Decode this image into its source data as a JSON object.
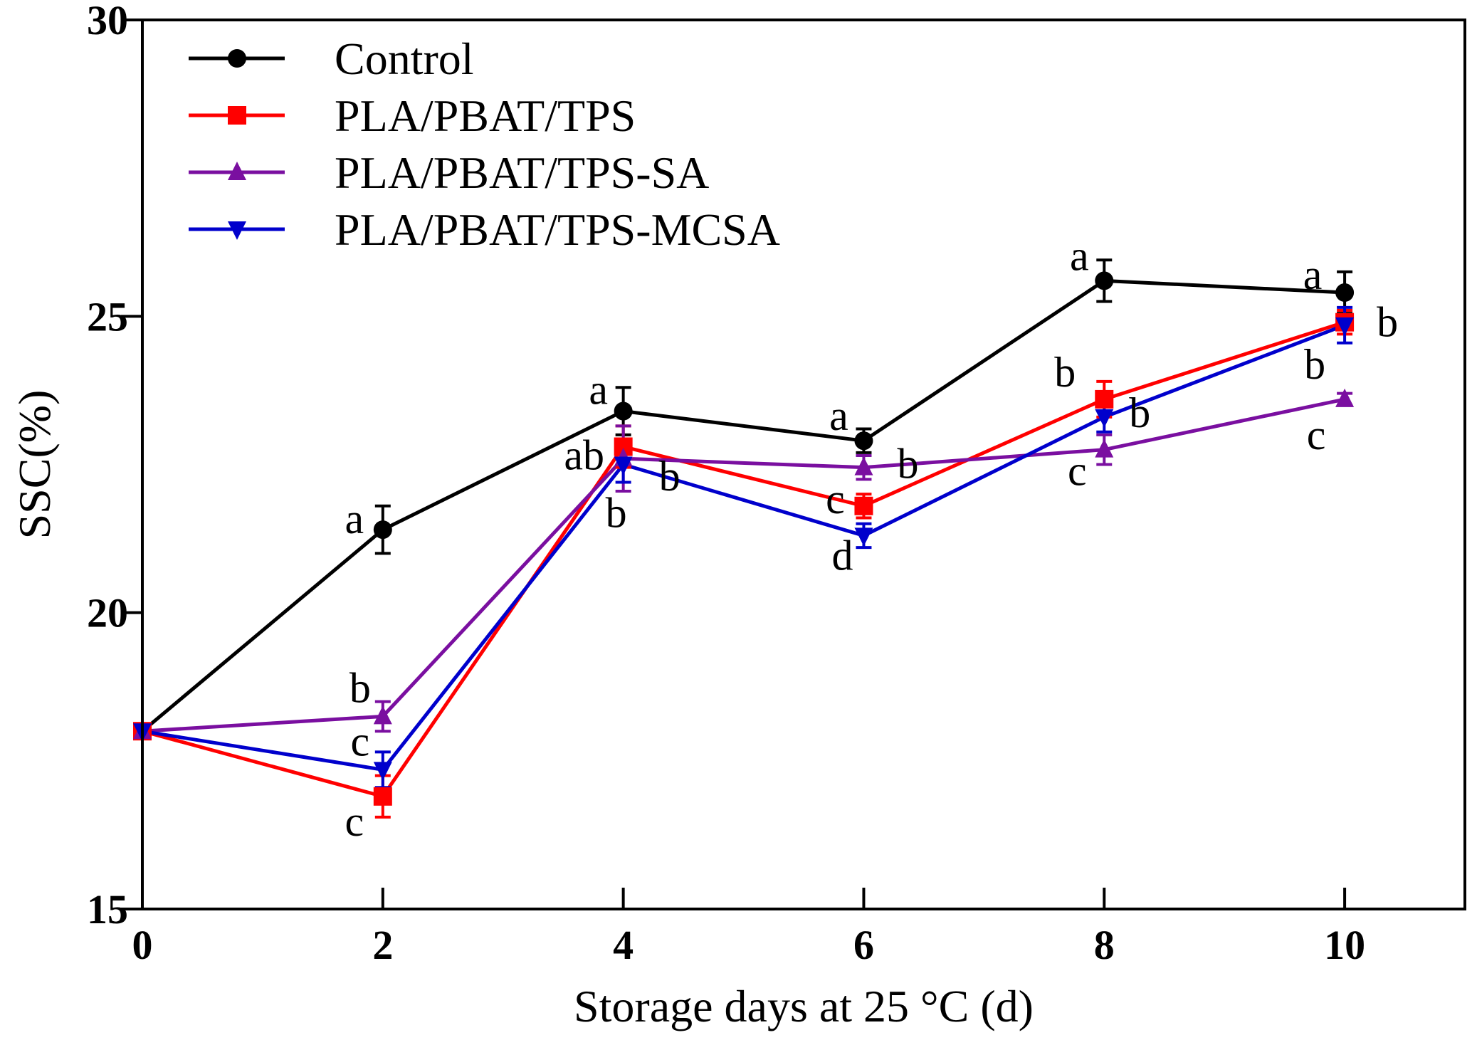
{
  "chart_data": {
    "type": "line",
    "xlabel": "Storage days at 25 °C (d)",
    "ylabel": "SSC(%)",
    "xlim": [
      0,
      11
    ],
    "ylim": [
      15,
      30
    ],
    "x_ticks": [
      "0",
      "2",
      "4",
      "6",
      "8",
      "10"
    ],
    "y_ticks": [
      "15",
      "20",
      "25",
      "30"
    ],
    "legend_position": "top-left",
    "x": [
      0,
      2,
      4,
      6,
      8,
      10
    ],
    "series": [
      {
        "name": "Control",
        "color": "#000000",
        "marker": "circle",
        "values": [
          18.0,
          21.4,
          23.4,
          22.9,
          25.6,
          25.4
        ],
        "errors": [
          0.1,
          0.4,
          0.4,
          0.2,
          0.35,
          0.35
        ]
      },
      {
        "name": "PLA/PBAT/TPS",
        "color": "#ff0000",
        "marker": "square",
        "values": [
          18.0,
          16.9,
          22.8,
          21.8,
          23.6,
          24.9
        ],
        "errors": [
          0.1,
          0.35,
          0.35,
          0.2,
          0.3,
          0.2
        ]
      },
      {
        "name": "PLA/PBAT/TPS-SA",
        "color": "#7a0fa0",
        "marker": "triangle-up",
        "values": [
          18.0,
          18.25,
          22.6,
          22.45,
          22.75,
          23.6
        ],
        "errors": [
          0.1,
          0.25,
          0.55,
          0.2,
          0.25,
          0.1
        ]
      },
      {
        "name": "PLA/PBAT/TPS-MCSA",
        "color": "#0000cc",
        "marker": "triangle-down",
        "values": [
          18.0,
          17.35,
          22.5,
          21.3,
          23.3,
          24.85
        ],
        "errors": [
          0.1,
          0.3,
          0.3,
          0.2,
          0.25,
          0.3
        ]
      }
    ],
    "annotations": [
      {
        "x": 2,
        "series": "Control",
        "text": "a"
      },
      {
        "x": 4,
        "series": "Control",
        "text": "a"
      },
      {
        "x": 6,
        "series": "Control",
        "text": "a"
      },
      {
        "x": 8,
        "series": "Control",
        "text": "a"
      },
      {
        "x": 10,
        "series": "Control",
        "text": "a"
      },
      {
        "x": 2,
        "series": "PLA/PBAT/TPS-SA",
        "text": "b"
      },
      {
        "x": 2,
        "series": "PLA/PBAT/TPS-MCSA",
        "text": "c"
      },
      {
        "x": 2,
        "series": "PLA/PBAT/TPS",
        "text": "c"
      },
      {
        "x": 4,
        "series": "PLA/PBAT/TPS",
        "text": "ab"
      },
      {
        "x": 4,
        "series": "PLA/PBAT/TPS-SA",
        "text": "b"
      },
      {
        "x": 4,
        "series": "PLA/PBAT/TPS-MCSA",
        "text": "b"
      },
      {
        "x": 6,
        "series": "PLA/PBAT/TPS-SA",
        "text": "b"
      },
      {
        "x": 6,
        "series": "PLA/PBAT/TPS",
        "text": "c"
      },
      {
        "x": 6,
        "series": "PLA/PBAT/TPS-MCSA",
        "text": "d"
      },
      {
        "x": 8,
        "series": "PLA/PBAT/TPS",
        "text": "b"
      },
      {
        "x": 8,
        "series": "PLA/PBAT/TPS-MCSA",
        "text": "b"
      },
      {
        "x": 8,
        "series": "PLA/PBAT/TPS-SA",
        "text": "c"
      },
      {
        "x": 10,
        "series": "PLA/PBAT/TPS",
        "text": "b"
      },
      {
        "x": 10,
        "series": "PLA/PBAT/TPS-MCSA",
        "text": "b"
      },
      {
        "x": 10,
        "series": "PLA/PBAT/TPS-SA",
        "text": "c"
      }
    ]
  }
}
